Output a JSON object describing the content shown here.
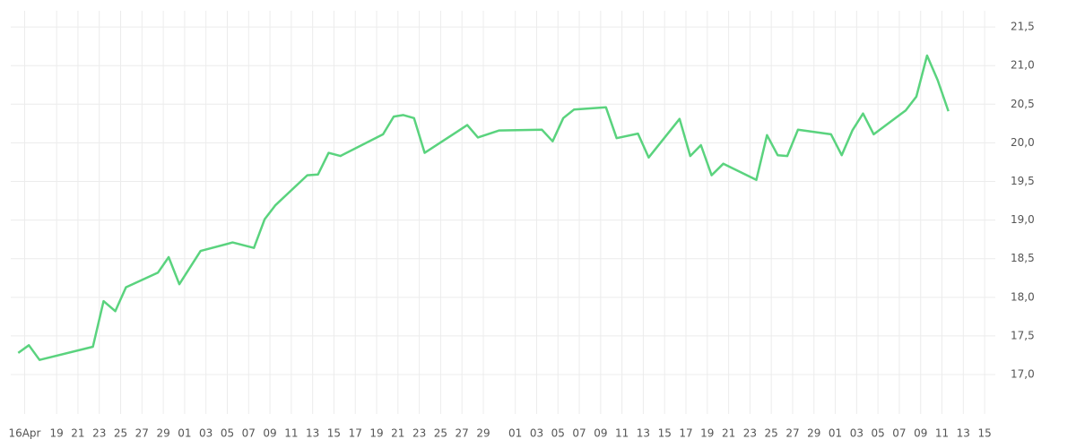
{
  "chart_data": {
    "type": "line",
    "color": "#5ad37e",
    "grid": true,
    "xlim": [
      -1.3,
      91.0
    ],
    "ylim": [
      16.49,
      21.71
    ],
    "xticks": [
      {
        "value": 0,
        "label": "16Apr"
      },
      {
        "value": 3,
        "label": "19"
      },
      {
        "value": 5,
        "label": "21"
      },
      {
        "value": 7,
        "label": "23"
      },
      {
        "value": 9,
        "label": "25"
      },
      {
        "value": 11,
        "label": "27"
      },
      {
        "value": 13,
        "label": "29"
      },
      {
        "value": 15,
        "label": "01"
      },
      {
        "value": 17,
        "label": "03"
      },
      {
        "value": 19,
        "label": "05"
      },
      {
        "value": 21,
        "label": "07"
      },
      {
        "value": 23,
        "label": "09"
      },
      {
        "value": 25,
        "label": "11"
      },
      {
        "value": 27,
        "label": "13"
      },
      {
        "value": 29,
        "label": "15"
      },
      {
        "value": 31,
        "label": "17"
      },
      {
        "value": 33,
        "label": "19"
      },
      {
        "value": 35,
        "label": "21"
      },
      {
        "value": 37,
        "label": "23"
      },
      {
        "value": 39,
        "label": "25"
      },
      {
        "value": 41,
        "label": "27"
      },
      {
        "value": 43,
        "label": "29"
      },
      {
        "value": 46,
        "label": "01"
      },
      {
        "value": 48,
        "label": "03"
      },
      {
        "value": 50,
        "label": "05"
      },
      {
        "value": 52,
        "label": "07"
      },
      {
        "value": 54,
        "label": "09"
      },
      {
        "value": 56,
        "label": "11"
      },
      {
        "value": 58,
        "label": "13"
      },
      {
        "value": 60,
        "label": "15"
      },
      {
        "value": 62,
        "label": "17"
      },
      {
        "value": 64,
        "label": "19"
      },
      {
        "value": 66,
        "label": "21"
      },
      {
        "value": 68,
        "label": "23"
      },
      {
        "value": 70,
        "label": "25"
      },
      {
        "value": 72,
        "label": "27"
      },
      {
        "value": 74,
        "label": "29"
      },
      {
        "value": 76,
        "label": "01"
      },
      {
        "value": 78,
        "label": "03"
      },
      {
        "value": 80,
        "label": "05"
      },
      {
        "value": 82,
        "label": "07"
      },
      {
        "value": 84,
        "label": "09"
      },
      {
        "value": 86,
        "label": "11"
      },
      {
        "value": 88,
        "label": "13"
      },
      {
        "value": 90,
        "label": "15"
      }
    ],
    "yticks": [
      {
        "value": 17,
        "label": "17,0"
      },
      {
        "value": 17.5,
        "label": "17,5"
      },
      {
        "value": 18,
        "label": "18,0"
      },
      {
        "value": 18.5,
        "label": "18,5"
      },
      {
        "value": 19,
        "label": "19,0"
      },
      {
        "value": 19.5,
        "label": "19,5"
      },
      {
        "value": 20,
        "label": "20,0"
      },
      {
        "value": 20.5,
        "label": "20,5"
      },
      {
        "value": 21,
        "label": "21,0"
      },
      {
        "value": 21.5,
        "label": "21,5"
      }
    ],
    "x": [
      -0.6,
      0.4,
      1.4,
      6.4,
      7.4,
      8.5,
      9.5,
      12.5,
      13.5,
      14.5,
      16.5,
      19.5,
      21.5,
      22.5,
      23.5,
      26.5,
      27.5,
      28.5,
      29.6,
      33.6,
      34.6,
      35.5,
      36.5,
      37.5,
      40.5,
      41.5,
      42.5,
      44.5,
      48.5,
      49.5,
      50.5,
      51.5,
      54.5,
      55.5,
      57.5,
      58.5,
      61.4,
      62.4,
      63.4,
      64.4,
      65.5,
      68.6,
      69.6,
      70.6,
      71.5,
      72.5,
      75.6,
      76.6,
      77.6,
      78.6,
      79.6,
      82.6,
      83.6,
      84.6,
      85.6,
      86.6
    ],
    "values": [
      17.28,
      17.38,
      17.19,
      17.36,
      17.95,
      17.82,
      18.13,
      18.32,
      18.52,
      18.17,
      18.6,
      18.71,
      18.64,
      19.01,
      19.19,
      19.58,
      19.59,
      19.87,
      19.83,
      20.11,
      20.34,
      20.36,
      20.32,
      19.87,
      20.14,
      20.23,
      20.07,
      20.16,
      20.17,
      20.02,
      20.32,
      20.43,
      20.46,
      20.06,
      20.12,
      19.81,
      20.31,
      19.83,
      19.97,
      19.58,
      19.73,
      19.52,
      20.1,
      19.84,
      19.83,
      20.17,
      20.11,
      19.84,
      20.16,
      20.38,
      20.11,
      20.42,
      20.6,
      21.13,
      20.81,
      20.41
    ]
  }
}
